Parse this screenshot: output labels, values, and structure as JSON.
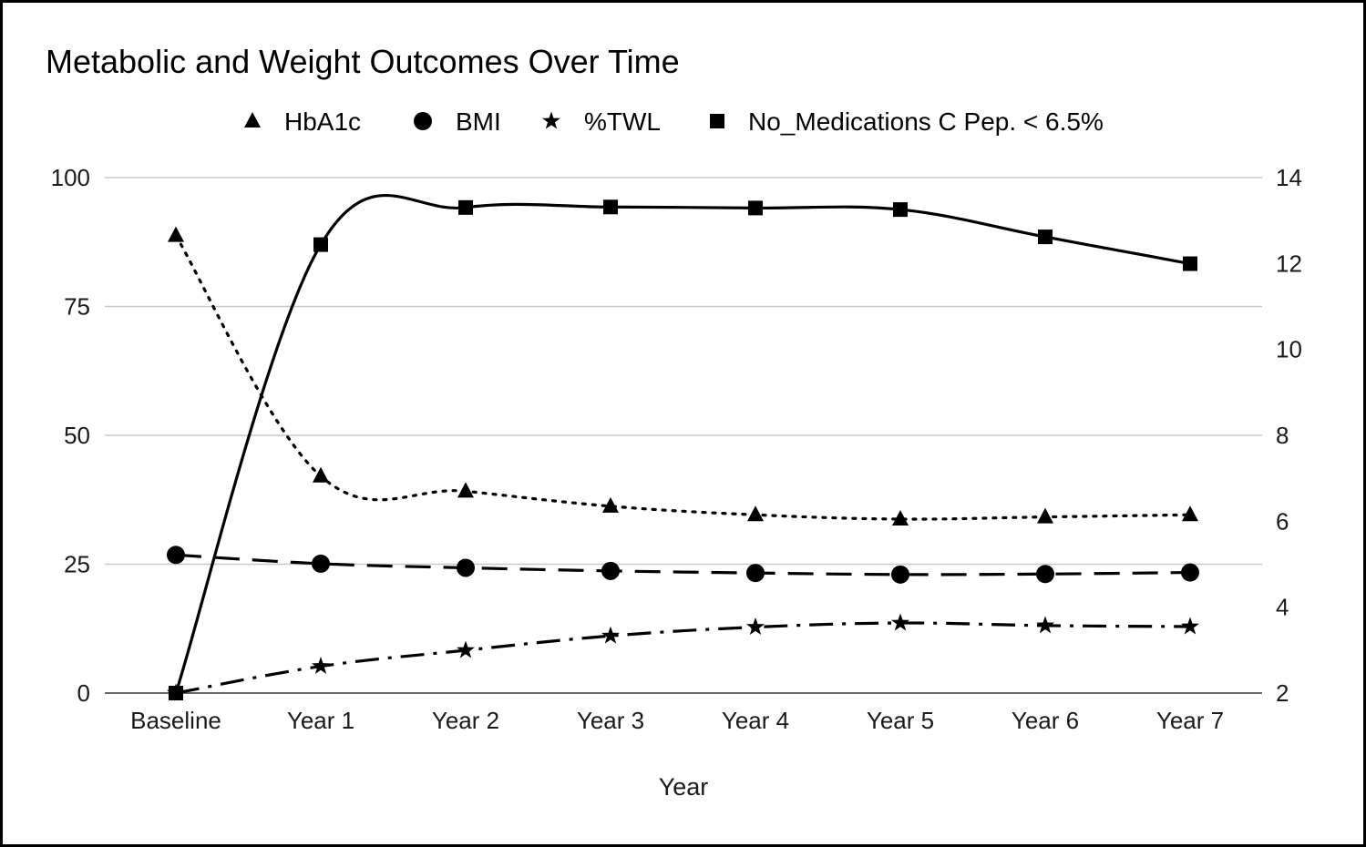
{
  "chart_data": {
    "type": "line",
    "title": "Metabolic and Weight Outcomes Over Time",
    "xlabel": "Year",
    "ylabel": "",
    "y2label": "",
    "categories": [
      "Baseline",
      "Year 1",
      "Year 2",
      "Year 3",
      "Year 4",
      "Year 5",
      "Year 6",
      "Year 7"
    ],
    "ylim": [
      0,
      100
    ],
    "y_ticks": [
      0,
      25,
      50,
      75,
      100
    ],
    "y2lim": [
      2,
      14
    ],
    "y2_ticks": [
      2,
      4,
      6,
      8,
      10,
      12,
      14
    ],
    "grid": true,
    "legend_position": "top",
    "series": [
      {
        "name": "HbA1c",
        "axis": "right",
        "marker": "triangle",
        "line_style": "dotted",
        "values": [
          12.65,
          7.05,
          6.7,
          6.35,
          6.15,
          6.05,
          6.1,
          6.15
        ]
      },
      {
        "name": "BMI",
        "axis": "left",
        "marker": "circle",
        "line_style": "dashed",
        "values": [
          26.8,
          25.1,
          24.3,
          23.7,
          23.3,
          23.0,
          23.1,
          23.4
        ]
      },
      {
        "name": "%TWL",
        "axis": "left",
        "marker": "star",
        "line_style": "dash-dot",
        "values": [
          0,
          5.2,
          8.3,
          11.1,
          12.8,
          13.6,
          13.1,
          12.9
        ]
      },
      {
        "name": "No_Medications C Pep. < 6.5%",
        "axis": "left",
        "marker": "square",
        "line_style": "solid",
        "values": [
          0,
          87.0,
          94.2,
          94.3,
          94.1,
          93.8,
          88.5,
          83.3
        ]
      }
    ]
  },
  "colors": {
    "series": "#000000",
    "grid": "#c8c8c8",
    "background": "#ffffff"
  }
}
